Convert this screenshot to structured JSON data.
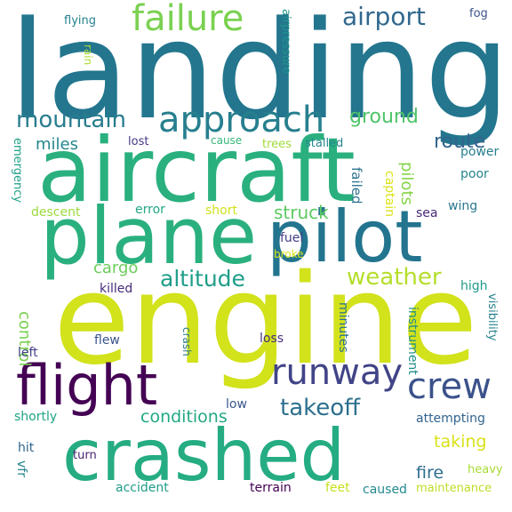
{
  "words": [
    {
      "text": "landing",
      "color": "#23768e"
    },
    {
      "text": "engine",
      "color": "#d2e21b"
    },
    {
      "text": "aircraft",
      "color": "#2ab07f"
    },
    {
      "text": "plane",
      "color": "#2ab07f"
    },
    {
      "text": "pilot",
      "color": "#23748e"
    },
    {
      "text": "crashed",
      "color": "#25ac82"
    },
    {
      "text": "flight",
      "color": "#440154"
    },
    {
      "text": "approach",
      "color": "#277f8e"
    },
    {
      "text": "failure",
      "color": "#7ad151"
    },
    {
      "text": "runway",
      "color": "#414487"
    },
    {
      "text": "crew",
      "color": "#3b528b"
    },
    {
      "text": "airport",
      "color": "#31688e"
    },
    {
      "text": "mountain",
      "color": "#287d8e"
    },
    {
      "text": "takeoff",
      "color": "#2d708e"
    },
    {
      "text": "weather",
      "color": "#b5de2b"
    },
    {
      "text": "altitude",
      "color": "#1f9e89"
    },
    {
      "text": "ground",
      "color": "#50c46a"
    },
    {
      "text": "route",
      "color": "#33638d"
    },
    {
      "text": "struck",
      "color": "#5ec962"
    },
    {
      "text": "conditions",
      "color": "#22a884"
    },
    {
      "text": "taking",
      "color": "#d8e219"
    },
    {
      "text": "fire",
      "color": "#2e6e8e"
    },
    {
      "text": "miles",
      "color": "#24878e"
    },
    {
      "text": "cargo",
      "color": "#6ccd5a"
    },
    {
      "text": "control",
      "color": "#7ad151"
    },
    {
      "text": "fuel",
      "color": "#433e85"
    },
    {
      "text": "pilots",
      "color": "#86d549"
    },
    {
      "text": "high",
      "color": "#1f9a8a"
    },
    {
      "text": "killed",
      "color": "#472c7a"
    },
    {
      "text": "lost",
      "color": "#453882"
    },
    {
      "text": "cause",
      "color": "#35b779"
    },
    {
      "text": "trees",
      "color": "#a2da37"
    },
    {
      "text": "stalled",
      "color": "#24868e"
    },
    {
      "text": "power",
      "color": "#277f8e"
    },
    {
      "text": "poor",
      "color": "#25858e"
    },
    {
      "text": "failed",
      "color": "#2c738e"
    },
    {
      "text": "captain",
      "color": "#dde318"
    },
    {
      "text": "emergency",
      "color": "#1fa188"
    },
    {
      "text": "descent",
      "color": "#9bd93c"
    },
    {
      "text": "error",
      "color": "#22a785"
    },
    {
      "text": "short",
      "color": "#d2e21b"
    },
    {
      "text": "sea",
      "color": "#482878"
    },
    {
      "text": "wing",
      "color": "#2a788e"
    },
    {
      "text": "broke",
      "color": "#dae319"
    },
    {
      "text": "flying",
      "color": "#26828e"
    },
    {
      "text": "rain",
      "color": "#addc30"
    },
    {
      "text": "airpressure",
      "color": "#20928c"
    },
    {
      "text": "fog",
      "color": "#3b528b"
    },
    {
      "text": "left",
      "color": "#424086"
    },
    {
      "text": "flew",
      "color": "#3a548c"
    },
    {
      "text": "crash",
      "color": "#2a788e"
    },
    {
      "text": "loss",
      "color": "#46307e"
    },
    {
      "text": "minutes",
      "color": "#2c728e"
    },
    {
      "text": "instrument",
      "color": "#21918c"
    },
    {
      "text": "visibility",
      "color": "#26828e"
    },
    {
      "text": "low",
      "color": "#39568c"
    },
    {
      "text": "shortly",
      "color": "#20a486"
    },
    {
      "text": "attempting",
      "color": "#32648e"
    },
    {
      "text": "hit",
      "color": "#31668e"
    },
    {
      "text": "turn",
      "color": "#481f70"
    },
    {
      "text": "vfr",
      "color": "#25848e"
    },
    {
      "text": "heavy",
      "color": "#a8db34"
    },
    {
      "text": "accident",
      "color": "#1e9c89"
    },
    {
      "text": "terrain",
      "color": "#440154"
    },
    {
      "text": "feet",
      "color": "#c8e020"
    },
    {
      "text": "caused",
      "color": "#23898e"
    },
    {
      "text": "maintenance",
      "color": "#bddf26"
    }
  ]
}
